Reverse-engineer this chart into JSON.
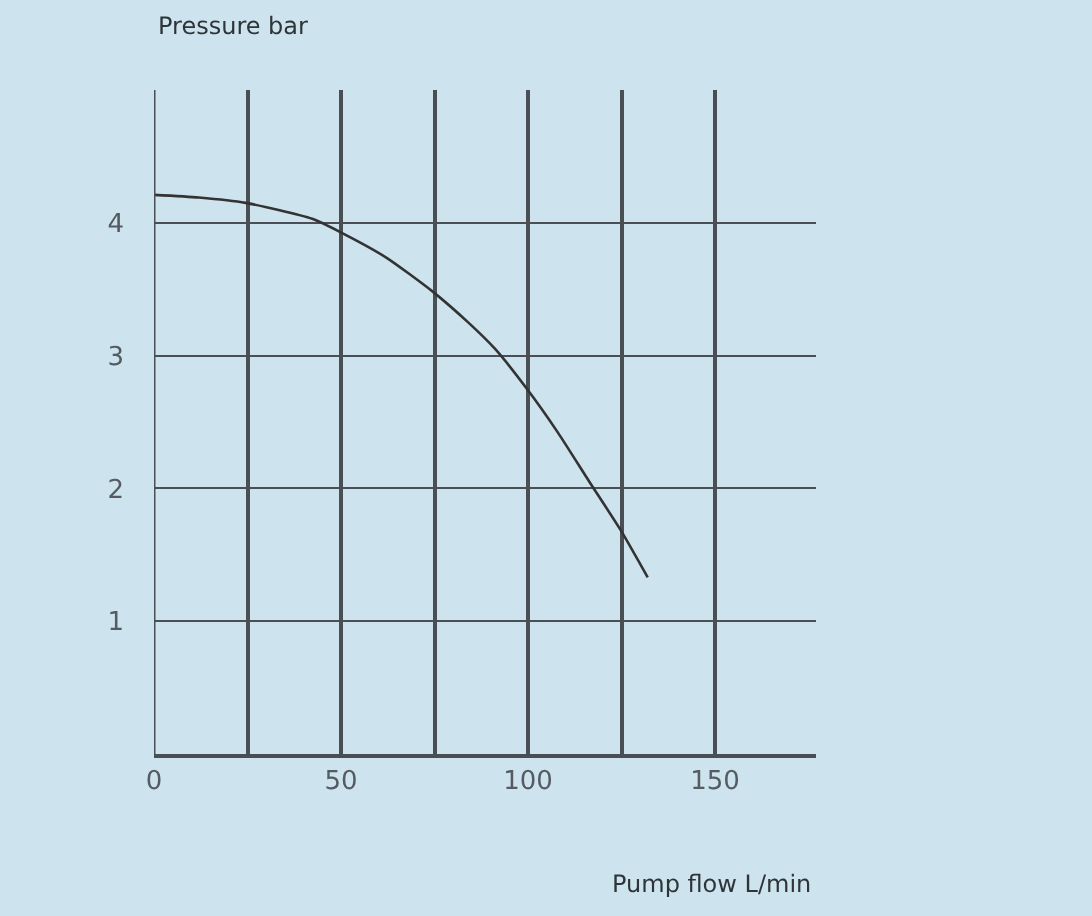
{
  "chart_data": {
    "type": "line",
    "ylabel": "Pressure bar",
    "xlabel": "Pump flow L/min",
    "x": [
      0,
      12,
      24.5,
      42.3,
      49.8,
      62,
      74.6,
      84,
      91.2,
      99.7,
      108,
      116.4,
      124.9,
      132
    ],
    "series": [
      {
        "color": "#333333",
        "values": [
          4.21,
          4.19,
          4.15,
          4.03,
          3.93,
          3.74,
          3.48,
          3.25,
          3.05,
          2.75,
          2.42,
          2.05,
          1.68,
          1.33
        ]
      }
    ],
    "xlim": [
      0,
      177
    ],
    "ylim": [
      0,
      5
    ],
    "xticks": [
      0,
      {
        "value": 25,
        "label": null
      },
      50,
      {
        "value": 75,
        "label": null
      },
      100,
      {
        "value": 125,
        "label": null
      },
      150
    ],
    "yticks": [
      1,
      2,
      3,
      4
    ],
    "grid": true,
    "marker": "none",
    "line_style": "solid"
  }
}
